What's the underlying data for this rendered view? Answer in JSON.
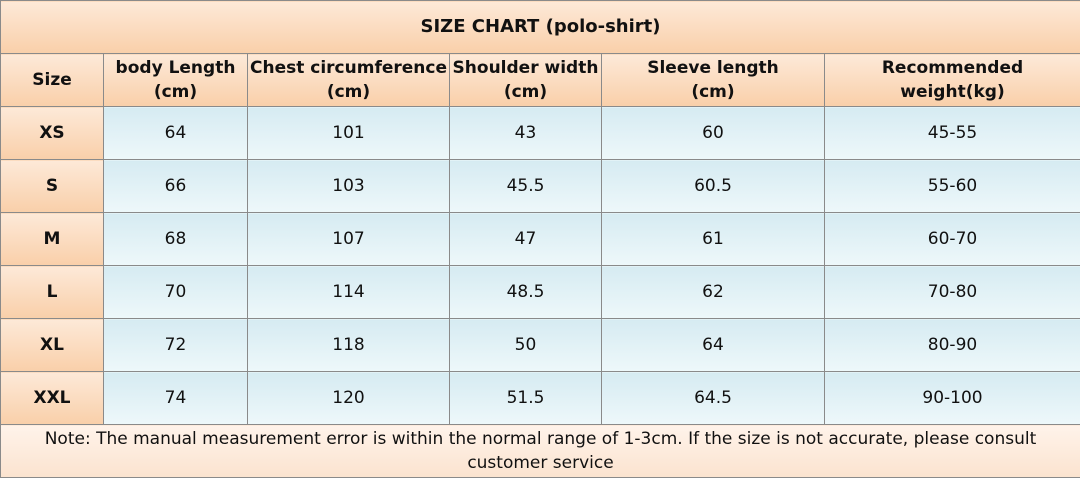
{
  "table": {
    "title": "SIZE CHART  (polo-shirt)",
    "columns": [
      "Size",
      "body Length\n(cm)",
      "Chest circumference\n(cm)",
      "Shoulder width\n(cm)",
      "Sleeve length\n(cm)",
      "Recommended weight(kg)"
    ],
    "rows": [
      [
        "XS",
        64,
        101,
        43,
        60,
        "45-55"
      ],
      [
        "S",
        66,
        103,
        45.5,
        60.5,
        "55-60"
      ],
      [
        "M",
        68,
        107,
        47,
        61,
        "60-70"
      ],
      [
        "L",
        70,
        114,
        48.5,
        62,
        "70-80"
      ],
      [
        "XL",
        72,
        118,
        50,
        64,
        "80-90"
      ],
      [
        "XXL",
        74,
        120,
        51.5,
        64.5,
        "90-100"
      ]
    ],
    "note": "Note: The manual measurement error is within the normal range of 1-3cm. If the size is not accurate, please consult customer service"
  }
}
